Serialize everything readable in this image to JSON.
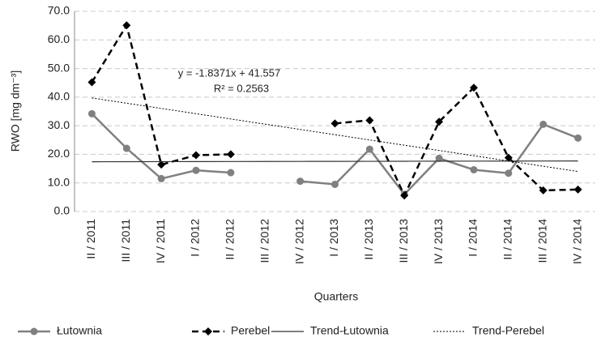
{
  "chart_data": {
    "type": "line",
    "xlabel": "Quarters",
    "ylabel": "RWO [mg dm⁻³]",
    "annotations": [
      "y = -1.8371x + 41.557",
      "R² = 0.2563"
    ],
    "categories": [
      "II / 2011",
      "III / 2011",
      "IV / 2011",
      "I / 2012",
      "II / 2012",
      "III / 2012",
      "IV / 2012",
      "I / 2013",
      "II / 2013",
      "III / 2013",
      "IV / 2013",
      "I / 2014",
      "II / 2014",
      "III / 2014",
      "IV / 2014"
    ],
    "series": [
      {
        "name": "Łutownia",
        "color": "#808080",
        "style": "solid",
        "marker": "circle",
        "values": [
          34.2,
          22.1,
          11.5,
          14.4,
          13.6,
          null,
          10.6,
          9.5,
          21.8,
          6.0,
          18.6,
          14.6,
          13.4,
          30.5,
          25.7
        ]
      },
      {
        "name": "Perebel",
        "color": "#000000",
        "style": "dashed",
        "marker": "diamond",
        "values": [
          45.2,
          65.1,
          16.4,
          19.7,
          20.0,
          null,
          null,
          30.8,
          31.9,
          5.6,
          31.4,
          43.3,
          18.8,
          7.4,
          7.7
        ]
      },
      {
        "name": "Trend-Łutownia",
        "color": "#333333",
        "style": "solid",
        "marker": "none",
        "values": [
          17.4,
          17.42,
          17.44,
          17.46,
          17.48,
          17.5,
          17.52,
          17.54,
          17.56,
          17.58,
          17.6,
          17.62,
          17.64,
          17.66,
          17.68
        ]
      },
      {
        "name": "Trend-Perebel",
        "color": "#000000",
        "style": "dotted",
        "marker": "none",
        "values": [
          39.72,
          37.88,
          36.05,
          34.21,
          32.37,
          30.53,
          28.7,
          26.86,
          25.02,
          23.19,
          21.35,
          19.51,
          17.67,
          15.84,
          14.0
        ]
      }
    ],
    "ylim": [
      0,
      70
    ],
    "yticks": [
      {
        "value": 0,
        "label": "0.0"
      },
      {
        "value": 10,
        "label": "10.0"
      },
      {
        "value": 20,
        "label": "20.0"
      },
      {
        "value": 30,
        "label": "30.0"
      },
      {
        "value": 40,
        "label": "40.0"
      },
      {
        "value": 50,
        "label": "50.0"
      },
      {
        "value": 60,
        "label": "60.0"
      },
      {
        "value": 70,
        "label": "70.0"
      }
    ],
    "grid": true,
    "legend": "bottom"
  }
}
